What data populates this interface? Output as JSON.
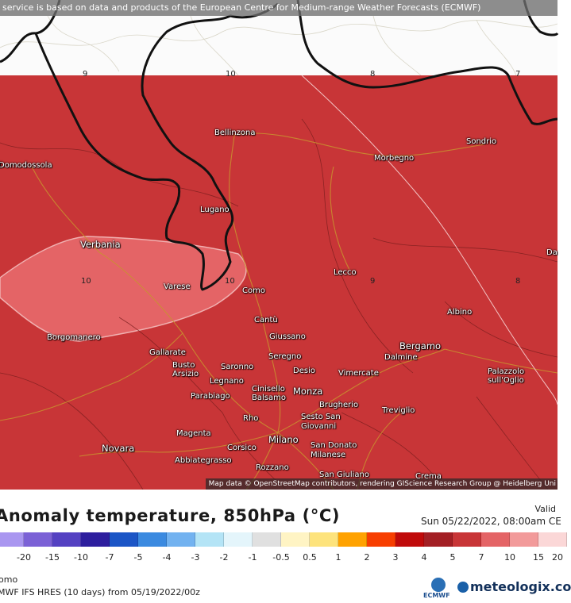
{
  "banner": "service is based on data and products of the European Centre for Medium-range Weather Forecasts (ECMWF)",
  "attribution": "Map data © OpenStreetMap contributors, rendering GIScience Research Group @ Heidelberg Uni",
  "colors": {
    "anomaly_7_10": "#c83537",
    "anomaly_10_15": "#e46466",
    "no_data": "#ffffff",
    "border": "#111111",
    "road": "#c8932f"
  },
  "cities": [
    {
      "name": "Bellinzona",
      "big": false
    },
    {
      "name": "Sondrio",
      "big": false
    },
    {
      "name": "Morbegno",
      "big": false
    },
    {
      "name": "Domodossola",
      "big": false
    },
    {
      "name": "Lugano",
      "big": false
    },
    {
      "name": "Verbania",
      "big": true
    },
    {
      "name": "Lecco",
      "big": false
    },
    {
      "name": "Varese",
      "big": false
    },
    {
      "name": "Como",
      "big": false
    },
    {
      "name": "Albino",
      "big": false
    },
    {
      "name": "Cantù",
      "big": false
    },
    {
      "name": "Borgomanero",
      "big": false
    },
    {
      "name": "Giussano",
      "big": false
    },
    {
      "name": "Bergamo",
      "big": true
    },
    {
      "name": "Gallarate",
      "big": false
    },
    {
      "name": "Seregno",
      "big": false
    },
    {
      "name": "Dalmine",
      "big": false
    },
    {
      "name": "Busto Arsizio",
      "big": false
    },
    {
      "name": "Desio",
      "big": false
    },
    {
      "name": "Vimercate",
      "big": false
    },
    {
      "name": "Palazzolo sull'Oglio",
      "big": false
    },
    {
      "name": "Saronno",
      "big": false
    },
    {
      "name": "Legnano",
      "big": false
    },
    {
      "name": "Cinisello Balsamo",
      "big": false
    },
    {
      "name": "Monza",
      "big": true
    },
    {
      "name": "Parabiago",
      "big": false
    },
    {
      "name": "Brugherio",
      "big": false
    },
    {
      "name": "Rho",
      "big": false
    },
    {
      "name": "Sesto San Giovanni",
      "big": false
    },
    {
      "name": "Treviglio",
      "big": false
    },
    {
      "name": "Magenta",
      "big": false
    },
    {
      "name": "Milano",
      "big": true
    },
    {
      "name": "Novara",
      "big": true
    },
    {
      "name": "Corsico",
      "big": false
    },
    {
      "name": "San Donato Milanese",
      "big": false
    },
    {
      "name": "Abbiategrasso",
      "big": false
    },
    {
      "name": "Rozzano",
      "big": false
    },
    {
      "name": "San Giuliano",
      "big": false
    },
    {
      "name": "Crema",
      "big": false
    },
    {
      "name": "Da",
      "big": false
    }
  ],
  "isolines": [
    "9",
    "10",
    "8",
    "7",
    "10",
    "10",
    "9",
    "8"
  ],
  "legend": {
    "title": "Anomaly temperature, 850hPa (°C)",
    "valid_label": "Valid",
    "valid_date": "Sun 05/22/2022, 08:00am CE",
    "location": "omo",
    "model": "MWF IFS HRES (10 days) from 05/19/2022/00z",
    "colors": [
      "#a996f0",
      "#7b61d6",
      "#5441c2",
      "#2d1e9e",
      "#1b55c6",
      "#3b8ae0",
      "#72b2f0",
      "#b4e4f6",
      "#e4f5fb",
      "#e0e0e0",
      "#fff4c4",
      "#fde37c",
      "#ffa200",
      "#f73e00",
      "#c00a0a",
      "#a31f24",
      "#c83537",
      "#e46466",
      "#f29a9a",
      "#fbd7d7"
    ],
    "labels": [
      "-20",
      "-15",
      "-10",
      "-7",
      "-5",
      "-4",
      "-3",
      "-2",
      "-1",
      "-0.5",
      "0.5",
      "1",
      "2",
      "3",
      "4",
      "5",
      "7",
      "10",
      "15",
      "20"
    ]
  },
  "logos": {
    "ecmwf": "ECMWF",
    "meteologix": "meteologix.co"
  }
}
